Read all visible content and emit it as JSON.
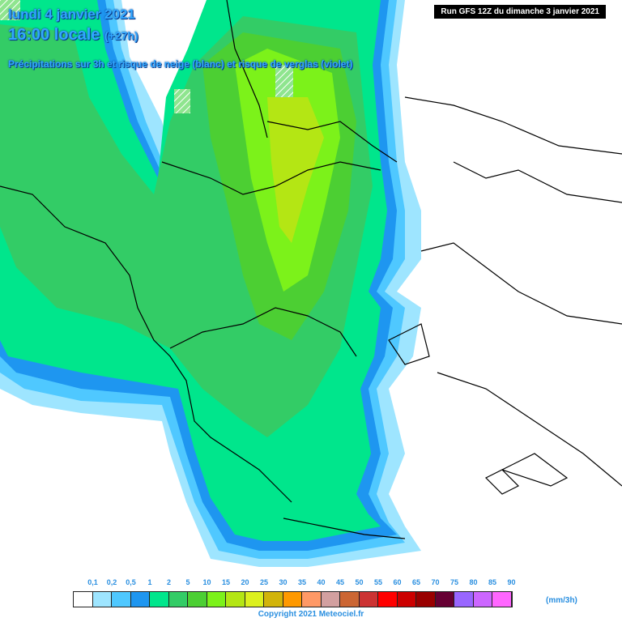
{
  "header": {
    "date": "lundi 4 janvier 2021",
    "time_main": "16:00 locale",
    "time_offset": "(+27h)",
    "subtitle": "Précipitations sur 3h et risque de neige (blanc) et risque de verglas (violet)",
    "run": "Run GFS 12Z du dimanche 3 janvier 2021"
  },
  "legend": {
    "ticks": [
      "0,1",
      "0,2",
      "0,5",
      "1",
      "2",
      "5",
      "10",
      "15",
      "20",
      "25",
      "30",
      "35",
      "40",
      "45",
      "50",
      "55",
      "60",
      "65",
      "70",
      "75",
      "80",
      "85",
      "90"
    ],
    "colors": [
      "#ffffff",
      "#9ee5ff",
      "#4fc8ff",
      "#1e96f0",
      "#00e68c",
      "#33cc66",
      "#4ccf33",
      "#7cf21a",
      "#b4e614",
      "#dcf01e",
      "#d2b40a",
      "#ff9900",
      "#ff9966",
      "#d2a0a0",
      "#cc6633",
      "#cc3333",
      "#ff0000",
      "#cc0000",
      "#990000",
      "#660033",
      "#9966ff",
      "#cc66ff",
      "#ff66ff"
    ],
    "unit": "(mm/3h)"
  },
  "footer": {
    "copyright": "Copyright 2021 Meteociel.fr"
  }
}
